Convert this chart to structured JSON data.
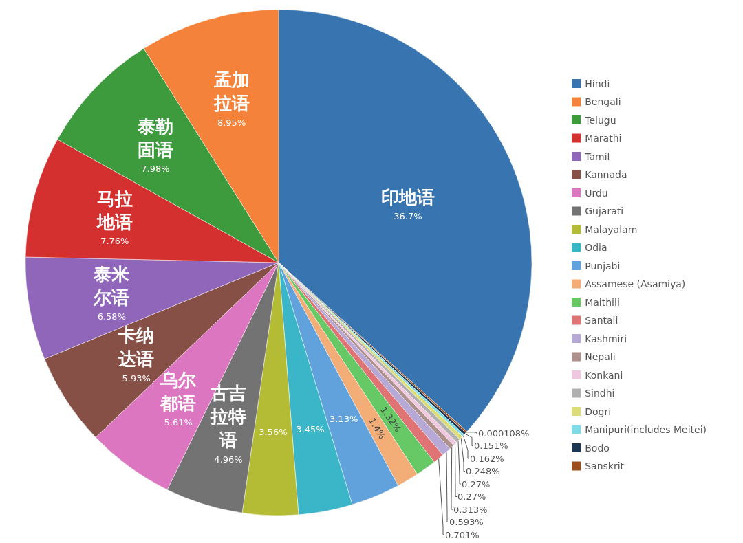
{
  "chart_data": {
    "type": "pie",
    "categories": [
      "Hindi",
      "Bengali",
      "Telugu",
      "Marathi",
      "Tamil",
      "Kannada",
      "Urdu",
      "Gujarati",
      "Malayalam",
      "Odia",
      "Punjabi",
      "Assamese (Asamiya)",
      "Maithili",
      "Santali",
      "Kashmiri",
      "Nepali",
      "Konkani",
      "Sindhi",
      "Dogri",
      "Manipuri(includes Meitei)",
      "Bodo",
      "Sanskrit"
    ],
    "values": [
      36.7,
      8.95,
      7.98,
      7.76,
      6.58,
      5.93,
      5.61,
      4.96,
      3.56,
      3.45,
      3.13,
      1.4,
      1.32,
      0.701,
      0.593,
      0.313,
      0.27,
      0.27,
      0.248,
      0.162,
      0.151,
      0.000108
    ],
    "value_labels": [
      "36.7%",
      "8.95%",
      "7.98%",
      "7.76%",
      "6.58%",
      "5.93%",
      "5.61%",
      "4.96%",
      "3.56%",
      "3.45%",
      "3.13%",
      "1.4%",
      "1.32%",
      "0.701%",
      "0.593%",
      "0.313%",
      "0.27%",
      "0.27%",
      "0.248%",
      "0.162%",
      "0.151%",
      "0.000108%"
    ],
    "colors": [
      "#3875b0",
      "#f5823a",
      "#3d9a3d",
      "#d3302f",
      "#9066bb",
      "#875047",
      "#dd76c0",
      "#737373",
      "#b4bb35",
      "#3bb5c8",
      "#61a2dc",
      "#f3ad77",
      "#66c966",
      "#e07474",
      "#b6a9d6",
      "#ad8f8b",
      "#efc7de",
      "#b0b0b0",
      "#dcdc78",
      "#7fdce6",
      "#1c3553",
      "#9c4f1c"
    ],
    "legend": "right",
    "annotations": [
      {
        "text": "印地语",
        "x": "Hindi"
      },
      {
        "text": "孟加拉语",
        "x": "Bengali"
      },
      {
        "text": "泰勒固语",
        "x": "Telugu"
      },
      {
        "text": "马拉地语",
        "x": "Marathi"
      },
      {
        "text": "泰米尔语",
        "x": "Tamil"
      },
      {
        "text": "卡纳达语",
        "x": "Kannada"
      },
      {
        "text": "乌尔都语",
        "x": "Urdu"
      },
      {
        "text": "古吉拉特语",
        "x": "Gujarati"
      }
    ]
  }
}
